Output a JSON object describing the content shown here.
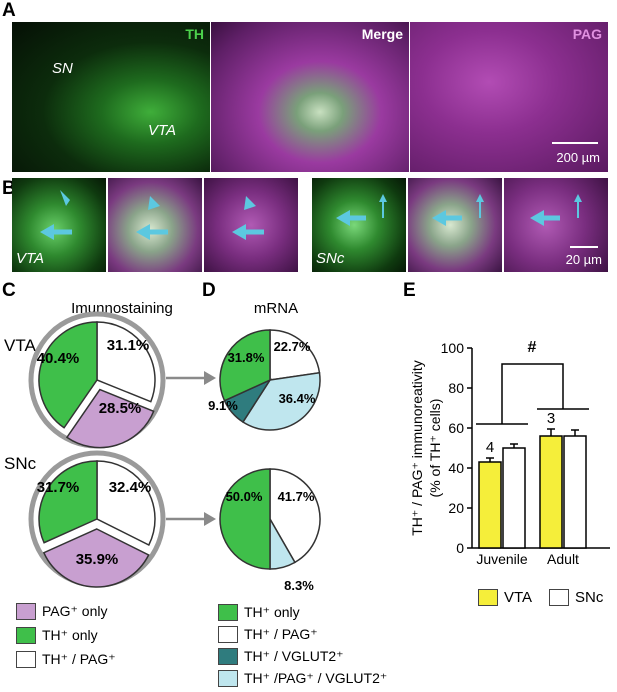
{
  "panels": {
    "A": {
      "letter": "A",
      "ch1": "TH",
      "merge": "Merge",
      "ch2": "PAG",
      "sn": "SN",
      "vta": "VTA",
      "scale": "200 µm"
    },
    "B": {
      "letter": "B",
      "vta": "VTA",
      "snc": "SNc",
      "scale": "20 µm"
    },
    "C": {
      "letter": "C",
      "title": "Imunnostaining",
      "vta": "VTA",
      "snc": "SNc"
    },
    "D": {
      "letter": "D",
      "title": "mRNA"
    },
    "E": {
      "letter": "E",
      "hash": "#"
    }
  },
  "colors": {
    "th_green": "#3fbf4a",
    "pag_purple": "#c89fd0",
    "both_white": "#ffffff",
    "vglut_teal": "#2f7c7e",
    "tri_lightblue": "#bfe6ee",
    "bar_yellow": "#f5ee3a",
    "arrow": "#5cc8e0"
  },
  "legend_C": [
    {
      "label": "PAG⁺ only",
      "color": "#c89fd0"
    },
    {
      "label": "TH⁺ only",
      "color": "#3fbf4a"
    },
    {
      "label": "TH⁺ / PAG⁺",
      "color": "#ffffff"
    }
  ],
  "legend_D": [
    {
      "label": "TH⁺ only",
      "color": "#3fbf4a"
    },
    {
      "label": "TH⁺ / PAG⁺",
      "color": "#ffffff"
    },
    {
      "label": "TH⁺ / VGLUT2⁺",
      "color": "#2f7c7e"
    },
    {
      "label": "TH⁺ /PAG⁺ / VGLUT2⁺",
      "color": "#bfe6ee"
    }
  ],
  "legend_E": [
    {
      "label": "VTA",
      "color": "#f5ee3a"
    },
    {
      "label": "SNc",
      "color": "#ffffff"
    }
  ],
  "chart_data": [
    {
      "type": "pie",
      "title": "",
      "region": "VTA",
      "method": "Imunnostaining",
      "slices": [
        {
          "label": "TH⁺ / PAG⁺",
          "value": 31.1,
          "text": "31.1%"
        },
        {
          "label": "PAG⁺ only",
          "value": 28.5,
          "text": "28.5%"
        },
        {
          "label": "TH⁺ only",
          "value": 40.4,
          "text": "40.4%"
        }
      ]
    },
    {
      "type": "pie",
      "title": "",
      "region": "SNc",
      "method": "Imunnostaining",
      "slices": [
        {
          "label": "TH⁺ / PAG⁺",
          "value": 32.4,
          "text": "32.4%"
        },
        {
          "label": "PAG⁺ only",
          "value": 35.9,
          "text": "35.9%"
        },
        {
          "label": "TH⁺ only",
          "value": 31.7,
          "text": "31.7%"
        }
      ]
    },
    {
      "type": "pie",
      "title": "",
      "region": "VTA",
      "method": "mRNA",
      "slices": [
        {
          "label": "TH⁺ / PAG⁺",
          "value": 22.7,
          "text": "22.7%"
        },
        {
          "label": "TH⁺ /PAG⁺ / VGLUT2⁺",
          "value": 36.4,
          "text": "36.4%"
        },
        {
          "label": "TH⁺ / VGLUT2⁺",
          "value": 9.1,
          "text": "9.1%"
        },
        {
          "label": "TH⁺ only",
          "value": 31.8,
          "text": "31.8%"
        }
      ]
    },
    {
      "type": "pie",
      "title": "",
      "region": "SNc",
      "method": "mRNA",
      "slices": [
        {
          "label": "TH⁺ / PAG⁺",
          "value": 41.7,
          "text": "41.7%"
        },
        {
          "label": "TH⁺ /PAG⁺ / VGLUT2⁺",
          "value": 8.3,
          "text": "8.3%"
        },
        {
          "label": "TH⁺ only",
          "value": 50.0,
          "text": "50.0%"
        }
      ]
    },
    {
      "type": "bar",
      "title": "",
      "ylabel_line1": "TH⁺ / PAG⁺ immunoreativity",
      "ylabel_line2": "(% of TH⁺ cells)",
      "categories": [
        "Juvenile",
        "Adult"
      ],
      "series": [
        {
          "name": "VTA",
          "values": [
            43,
            56
          ],
          "errors": [
            2,
            3.5
          ]
        },
        {
          "name": "SNc",
          "values": [
            50,
            56
          ],
          "errors": [
            2,
            3
          ]
        }
      ],
      "n_labels": [
        "4",
        "3"
      ],
      "ylim": [
        0,
        100
      ],
      "yticks": [
        0,
        20,
        40,
        60,
        80,
        100
      ]
    }
  ]
}
